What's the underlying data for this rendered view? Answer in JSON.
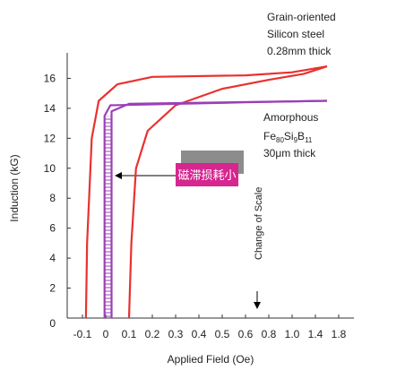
{
  "chart_data": {
    "type": "line",
    "xlabel": "Applied Field (Oe)",
    "ylabel": "Induction (kG)",
    "xticks": [
      -0.1,
      0,
      0.1,
      0.2,
      0.3,
      0.4,
      0.5,
      0.6,
      0.8,
      {
        "value": 1,
        "label": "1.0"
      },
      1.4,
      1.8
    ],
    "xlim": [
      -0.15,
      2.0
    ],
    "ylim": [
      0,
      17.7
    ],
    "yticks": [
      0,
      2,
      4,
      6,
      8,
      10,
      12,
      14,
      16
    ],
    "series": [
      {
        "color": "#e8322e",
        "x": [
          1.6,
          1.0,
          0.6,
          0.2,
          0.05,
          -0.03,
          -0.06,
          -0.08,
          -0.085
        ],
        "values": [
          16.8,
          16.4,
          16.2,
          16.1,
          15.6,
          14.5,
          12,
          5,
          0
        ]
      },
      {
        "color": "#e8322e",
        "x": [
          0.1,
          0.11,
          0.13,
          0.18,
          0.3,
          0.5,
          0.8,
          1.2,
          1.6
        ],
        "values": [
          0,
          5,
          10,
          12.5,
          14.2,
          15.3,
          15.9,
          16.3,
          16.8
        ]
      },
      {
        "color": "#9b3fb5",
        "x": [
          -0.005,
          -0.005,
          0.02,
          0.6,
          1.6
        ],
        "values": [
          0,
          13.5,
          14.2,
          14.4,
          14.5
        ]
      },
      {
        "color": "#9b3fb5",
        "x": [
          0.025,
          0.025,
          0.1,
          1.6
        ],
        "values": [
          0,
          13.8,
          14.3,
          14.5
        ]
      }
    ],
    "annotations": {
      "silicon": [
        "Grain-oriented",
        "Silicon steel",
        "0.28mm thick"
      ],
      "amorphous": "Amorphous",
      "formula": [
        "Fe",
        "80",
        "Si",
        "9",
        "B",
        "11"
      ],
      "thickness": "30μm thick",
      "scale": "Change of Scale",
      "loss": "磁滞损耗小"
    }
  }
}
